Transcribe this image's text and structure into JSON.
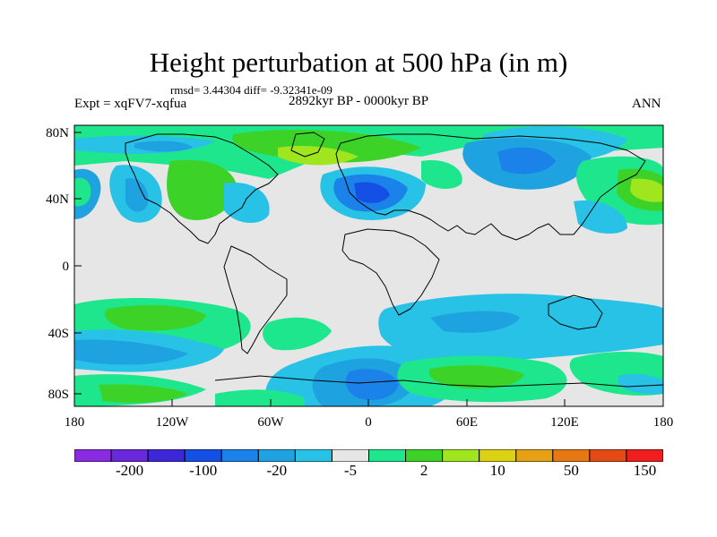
{
  "title": "Height perturbation at 500 hPa (in m)",
  "stats": "rmsd= 3.44304 diff= -9.32341e-09",
  "left_label": "Expt = xqFV7-xqfua",
  "center_label": "2892kyr BP - 0000kyr BP",
  "right_label": "ANN",
  "lat_ticks": [
    "80N",
    "40N",
    "0",
    "40S",
    "80S"
  ],
  "lon_ticks": [
    "180",
    "120W",
    "60W",
    "0",
    "60E",
    "120E",
    "180"
  ],
  "colorbar": {
    "colors": [
      "#8a2be2",
      "#6a28dc",
      "#3c28d8",
      "#1450e6",
      "#1a82e8",
      "#1ea2e0",
      "#28c2e6",
      "#e6e6e6",
      "#1ee68c",
      "#3cd228",
      "#a0e61e",
      "#dcd214",
      "#e6a014",
      "#e67814",
      "#e64a14",
      "#f01e1e"
    ],
    "labels": [
      "-200",
      "-100",
      "-20",
      "-5",
      "2",
      "10",
      "50",
      "150"
    ],
    "label_boundaries": [
      2,
      4,
      6,
      8,
      10,
      12,
      14,
      16
    ]
  }
}
